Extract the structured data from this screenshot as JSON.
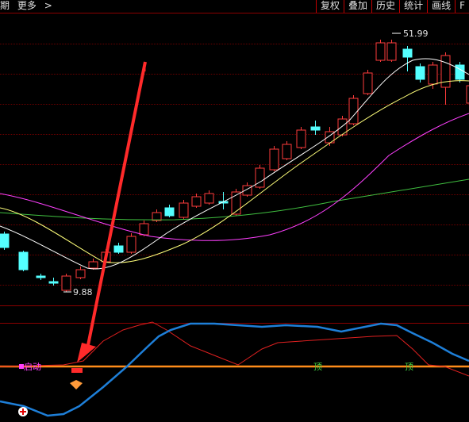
{
  "toolbar": {
    "left_items": [
      "期",
      "更多",
      ">"
    ],
    "right_buttons": [
      "复权",
      "叠加",
      "历史",
      "统计",
      "画线",
      "F"
    ]
  },
  "price_labels": {
    "high": "51.99",
    "low": "9.88"
  },
  "indicator_labels": {
    "start": "启动",
    "top1": "顶",
    "top2": "顶"
  },
  "colors": {
    "up": "#ff3c3c",
    "down": "#54ffff",
    "ma5": "#ffffff",
    "ma10": "#ffff7a",
    "ma20": "#ff40ff",
    "ma60": "#40c040",
    "blue_line": "#1e7fd8",
    "red_line": "#e02020",
    "orange_line": "#ff8c1a",
    "arrow": "#ff2a2a"
  },
  "icons": [
    "plus-circle-icon",
    "diamond-icon",
    "red-arrow"
  ]
}
